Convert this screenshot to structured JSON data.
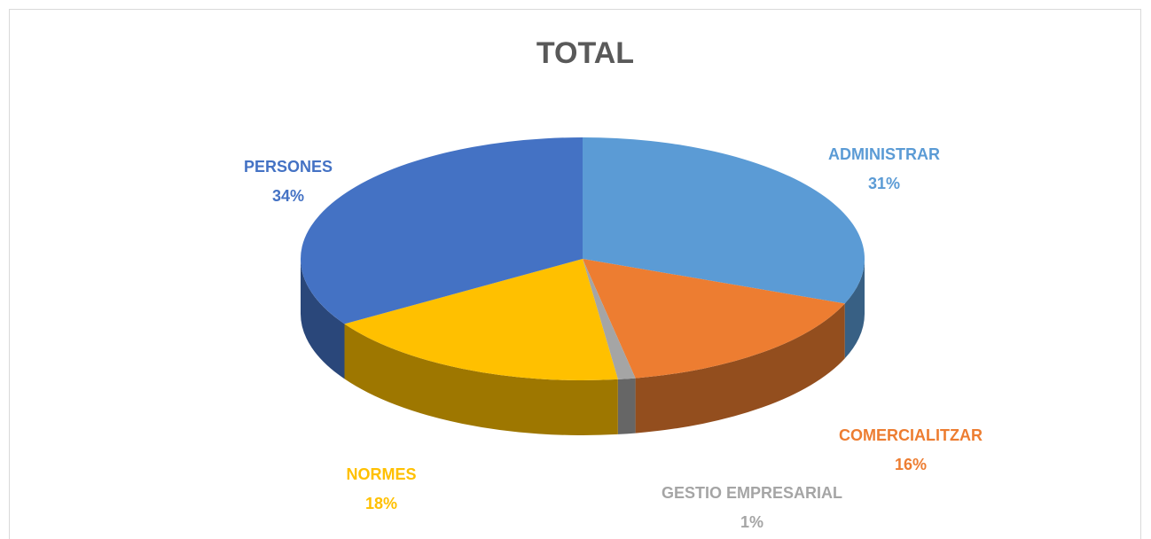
{
  "chart_data": {
    "type": "pie3d",
    "title": "TOTAL",
    "categories": [
      "ADMINISTRAR",
      "COMERCIALITZAR",
      "GESTIO EMPRESARIAL",
      "NORMES",
      "PERSONES"
    ],
    "values": [
      31,
      16,
      1,
      18,
      34
    ],
    "value_labels": [
      "31%",
      "16%",
      "1%",
      "18%",
      "34%"
    ],
    "colors": [
      "#5b9bd5",
      "#ed7d31",
      "#a5a5a5",
      "#ffc000",
      "#4472c4"
    ]
  }
}
